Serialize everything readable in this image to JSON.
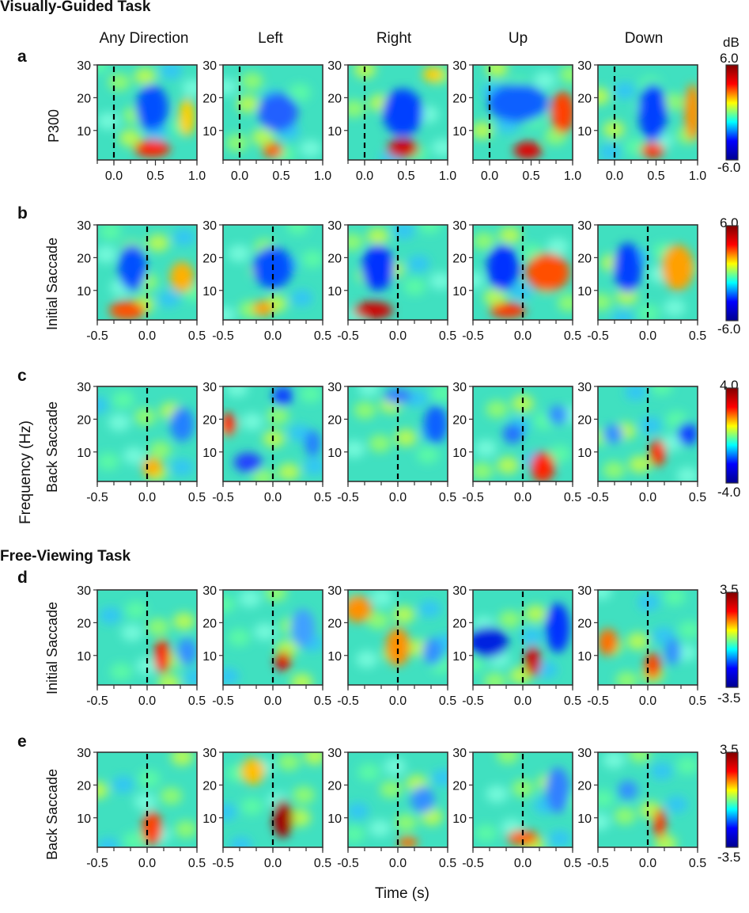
{
  "section_titles": [
    "Visually-Guided Task",
    "Free-Viewing Task"
  ],
  "column_titles": [
    "Any Direction",
    "Left",
    "Right",
    "Up",
    "Down"
  ],
  "colorbar_unit": "dB",
  "frequency_axis_label": "Frequency (Hz)",
  "time_axis_label": "Time (s)",
  "colormap": [
    "#00008f",
    "#0000ff",
    "#00ffff",
    "#ffff00",
    "#ff0000",
    "#800000"
  ],
  "chart_data": [
    {
      "panel": "a",
      "type": "heatmap",
      "ylabel": "P300",
      "x_ticks": [
        "0.0",
        "0.5",
        "1.0"
      ],
      "xlim": [
        -0.2,
        1.0
      ],
      "y_ticks": [
        "10",
        "20",
        "30"
      ],
      "ylim": [
        1,
        30
      ],
      "event_line_x": 0.0,
      "colorbar": {
        "max_label": "6.0",
        "min_label": "-6.0",
        "range": [
          -6.0,
          6.0
        ]
      },
      "columns": [
        "Any Direction",
        "Left",
        "Right",
        "Up",
        "Down"
      ]
    },
    {
      "panel": "b",
      "type": "heatmap",
      "ylabel": "Initial Saccade",
      "x_ticks": [
        "-0.5",
        "0.0",
        "0.5"
      ],
      "xlim": [
        -0.5,
        0.5
      ],
      "y_ticks": [
        "10",
        "20",
        "30"
      ],
      "ylim": [
        1,
        30
      ],
      "event_line_x": 0.0,
      "colorbar": {
        "max_label": "6.0",
        "min_label": "-6.0",
        "range": [
          -6.0,
          6.0
        ]
      },
      "columns": [
        "Any Direction",
        "Left",
        "Right",
        "Up",
        "Down"
      ]
    },
    {
      "panel": "c",
      "type": "heatmap",
      "ylabel": "Back Saccade",
      "x_ticks": [
        "-0.5",
        "0.0",
        "0.5"
      ],
      "xlim": [
        -0.5,
        0.5
      ],
      "y_ticks": [
        "10",
        "20",
        "30"
      ],
      "ylim": [
        1,
        30
      ],
      "event_line_x": 0.0,
      "colorbar": {
        "max_label": "4.0",
        "min_label": "-4.0",
        "range": [
          -4.0,
          4.0
        ]
      },
      "columns": [
        "Any Direction",
        "Left",
        "Right",
        "Up",
        "Down"
      ]
    },
    {
      "panel": "d",
      "type": "heatmap",
      "ylabel": "Initial Saccade",
      "x_ticks": [
        "-0.5",
        "0.0",
        "0.5"
      ],
      "xlim": [
        -0.5,
        0.5
      ],
      "y_ticks": [
        "10",
        "20",
        "30"
      ],
      "ylim": [
        1,
        30
      ],
      "event_line_x": 0.0,
      "colorbar": {
        "max_label": "3.5",
        "min_label": "-3.5",
        "range": [
          -3.5,
          3.5
        ]
      },
      "columns": [
        "Any Direction",
        "Left",
        "Right",
        "Up",
        "Down"
      ]
    },
    {
      "panel": "e",
      "type": "heatmap",
      "ylabel": "Back Saccade",
      "x_ticks": [
        "-0.5",
        "0.0",
        "0.5"
      ],
      "xlim": [
        -0.5,
        0.5
      ],
      "y_ticks": [
        "10",
        "20",
        "30"
      ],
      "ylim": [
        1,
        30
      ],
      "event_line_x": 0.0,
      "colorbar": {
        "max_label": "3.5",
        "min_label": "-3.5",
        "range": [
          -3.5,
          3.5
        ]
      },
      "columns": [
        "Any Direction",
        "Left",
        "Right",
        "Up",
        "Down"
      ]
    }
  ]
}
